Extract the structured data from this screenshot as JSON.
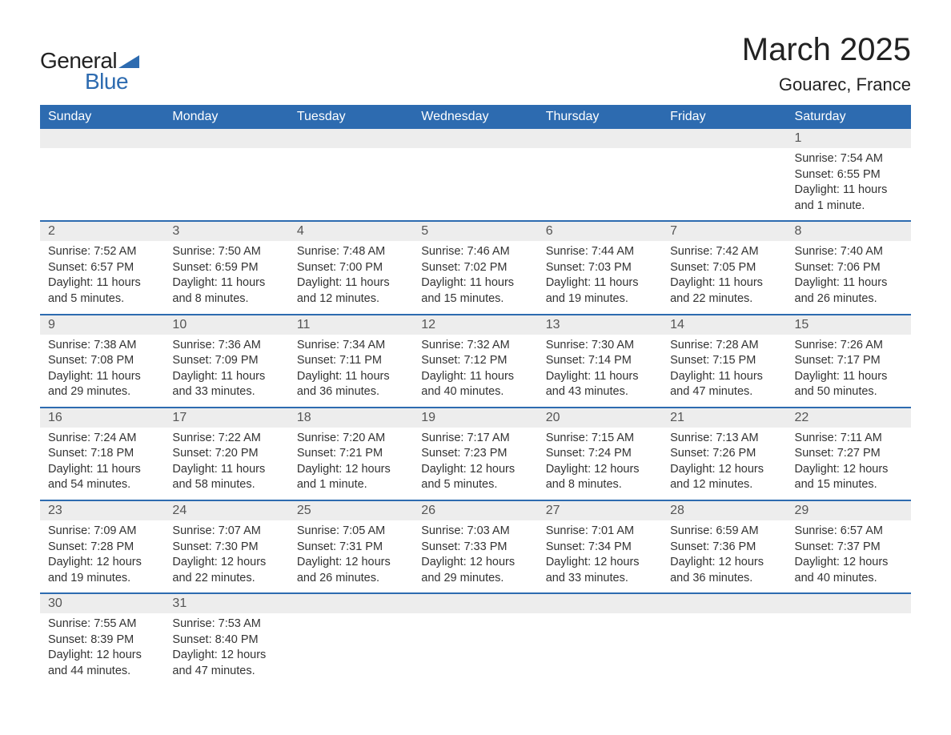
{
  "logo": {
    "text_general": "General",
    "text_blue": "Blue",
    "brand_color": "#2d6bb0"
  },
  "title": "March 2025",
  "location": "Gouarec, France",
  "colors": {
    "header_bg": "#2d6bb0",
    "header_text": "#ffffff",
    "daynum_bg": "#ededed",
    "row_divider": "#2d6bb0",
    "body_text": "#333333",
    "page_bg": "#ffffff"
  },
  "typography": {
    "title_fontsize": 40,
    "location_fontsize": 22,
    "header_fontsize": 16,
    "daynum_fontsize": 16,
    "body_fontsize": 14.5,
    "font_family": "Arial"
  },
  "layout": {
    "columns": 7,
    "rows": 6,
    "first_day_column": 6
  },
  "days_of_week": [
    "Sunday",
    "Monday",
    "Tuesday",
    "Wednesday",
    "Thursday",
    "Friday",
    "Saturday"
  ],
  "days": [
    {
      "n": 1,
      "sunrise": "7:54 AM",
      "sunset": "6:55 PM",
      "daylight": "11 hours and 1 minute."
    },
    {
      "n": 2,
      "sunrise": "7:52 AM",
      "sunset": "6:57 PM",
      "daylight": "11 hours and 5 minutes."
    },
    {
      "n": 3,
      "sunrise": "7:50 AM",
      "sunset": "6:59 PM",
      "daylight": "11 hours and 8 minutes."
    },
    {
      "n": 4,
      "sunrise": "7:48 AM",
      "sunset": "7:00 PM",
      "daylight": "11 hours and 12 minutes."
    },
    {
      "n": 5,
      "sunrise": "7:46 AM",
      "sunset": "7:02 PM",
      "daylight": "11 hours and 15 minutes."
    },
    {
      "n": 6,
      "sunrise": "7:44 AM",
      "sunset": "7:03 PM",
      "daylight": "11 hours and 19 minutes."
    },
    {
      "n": 7,
      "sunrise": "7:42 AM",
      "sunset": "7:05 PM",
      "daylight": "11 hours and 22 minutes."
    },
    {
      "n": 8,
      "sunrise": "7:40 AM",
      "sunset": "7:06 PM",
      "daylight": "11 hours and 26 minutes."
    },
    {
      "n": 9,
      "sunrise": "7:38 AM",
      "sunset": "7:08 PM",
      "daylight": "11 hours and 29 minutes."
    },
    {
      "n": 10,
      "sunrise": "7:36 AM",
      "sunset": "7:09 PM",
      "daylight": "11 hours and 33 minutes."
    },
    {
      "n": 11,
      "sunrise": "7:34 AM",
      "sunset": "7:11 PM",
      "daylight": "11 hours and 36 minutes."
    },
    {
      "n": 12,
      "sunrise": "7:32 AM",
      "sunset": "7:12 PM",
      "daylight": "11 hours and 40 minutes."
    },
    {
      "n": 13,
      "sunrise": "7:30 AM",
      "sunset": "7:14 PM",
      "daylight": "11 hours and 43 minutes."
    },
    {
      "n": 14,
      "sunrise": "7:28 AM",
      "sunset": "7:15 PM",
      "daylight": "11 hours and 47 minutes."
    },
    {
      "n": 15,
      "sunrise": "7:26 AM",
      "sunset": "7:17 PM",
      "daylight": "11 hours and 50 minutes."
    },
    {
      "n": 16,
      "sunrise": "7:24 AM",
      "sunset": "7:18 PM",
      "daylight": "11 hours and 54 minutes."
    },
    {
      "n": 17,
      "sunrise": "7:22 AM",
      "sunset": "7:20 PM",
      "daylight": "11 hours and 58 minutes."
    },
    {
      "n": 18,
      "sunrise": "7:20 AM",
      "sunset": "7:21 PM",
      "daylight": "12 hours and 1 minute."
    },
    {
      "n": 19,
      "sunrise": "7:17 AM",
      "sunset": "7:23 PM",
      "daylight": "12 hours and 5 minutes."
    },
    {
      "n": 20,
      "sunrise": "7:15 AM",
      "sunset": "7:24 PM",
      "daylight": "12 hours and 8 minutes."
    },
    {
      "n": 21,
      "sunrise": "7:13 AM",
      "sunset": "7:26 PM",
      "daylight": "12 hours and 12 minutes."
    },
    {
      "n": 22,
      "sunrise": "7:11 AM",
      "sunset": "7:27 PM",
      "daylight": "12 hours and 15 minutes."
    },
    {
      "n": 23,
      "sunrise": "7:09 AM",
      "sunset": "7:28 PM",
      "daylight": "12 hours and 19 minutes."
    },
    {
      "n": 24,
      "sunrise": "7:07 AM",
      "sunset": "7:30 PM",
      "daylight": "12 hours and 22 minutes."
    },
    {
      "n": 25,
      "sunrise": "7:05 AM",
      "sunset": "7:31 PM",
      "daylight": "12 hours and 26 minutes."
    },
    {
      "n": 26,
      "sunrise": "7:03 AM",
      "sunset": "7:33 PM",
      "daylight": "12 hours and 29 minutes."
    },
    {
      "n": 27,
      "sunrise": "7:01 AM",
      "sunset": "7:34 PM",
      "daylight": "12 hours and 33 minutes."
    },
    {
      "n": 28,
      "sunrise": "6:59 AM",
      "sunset": "7:36 PM",
      "daylight": "12 hours and 36 minutes."
    },
    {
      "n": 29,
      "sunrise": "6:57 AM",
      "sunset": "7:37 PM",
      "daylight": "12 hours and 40 minutes."
    },
    {
      "n": 30,
      "sunrise": "7:55 AM",
      "sunset": "8:39 PM",
      "daylight": "12 hours and 44 minutes."
    },
    {
      "n": 31,
      "sunrise": "7:53 AM",
      "sunset": "8:40 PM",
      "daylight": "12 hours and 47 minutes."
    }
  ],
  "labels": {
    "sunrise": "Sunrise:",
    "sunset": "Sunset:",
    "daylight": "Daylight:"
  }
}
